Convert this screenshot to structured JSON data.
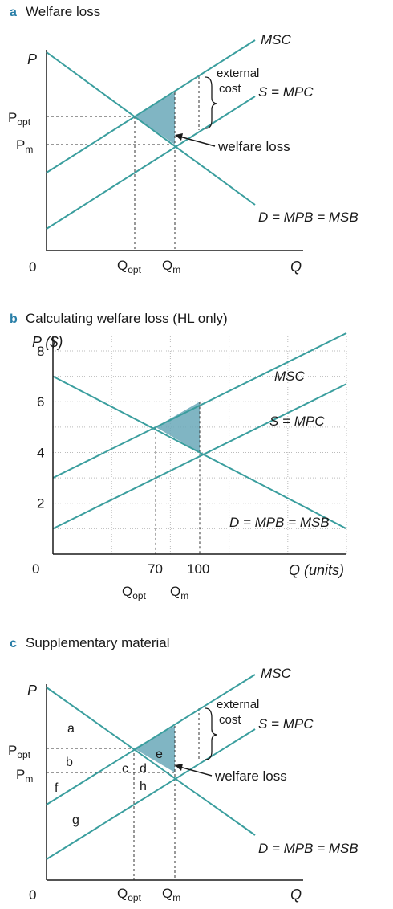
{
  "colors": {
    "curve": "#3a9e9e",
    "shade": "#6aa8b8",
    "axis": "#1a1a1a",
    "dashed": "#333333",
    "grid": "#bbbbbb",
    "panel_letter": "#2a7fa8"
  },
  "panels": {
    "a": {
      "letter": "a",
      "title": "Welfare loss",
      "y_axis": "P",
      "x_axis": "Q",
      "origin": "0",
      "p_opt": "P",
      "p_opt_sub": "opt",
      "p_m": "P",
      "p_m_sub": "m",
      "q_opt": "Q",
      "q_opt_sub": "opt",
      "q_m": "Q",
      "q_m_sub": "m",
      "msc": "MSC",
      "mpc": "S = MPC",
      "demand": "D = MPB = MSB",
      "external_cost_line1": "external",
      "external_cost_line2": "cost",
      "welfare_loss": "welfare loss"
    },
    "b": {
      "letter": "b",
      "title": "Calculating welfare loss (HL only)",
      "y_axis": "P ($)",
      "x_axis": "Q (units)",
      "origin": "0",
      "q_opt": "Q",
      "q_opt_sub": "opt",
      "q_m": "Q",
      "q_m_sub": "m",
      "msc": "MSC",
      "mpc": "S = MPC",
      "demand": "D = MPB = MSB"
    },
    "c": {
      "letter": "c",
      "title": "Supplementary material",
      "y_axis": "P",
      "x_axis": "Q",
      "origin": "0",
      "p_opt": "P",
      "p_opt_sub": "opt",
      "p_m": "P",
      "p_m_sub": "m",
      "q_opt": "Q",
      "q_opt_sub": "opt",
      "q_m": "Q",
      "q_m_sub": "m",
      "msc": "MSC",
      "mpc": "S = MPC",
      "demand": "D = MPB = MSB",
      "external_cost_line1": "external",
      "external_cost_line2": "cost",
      "welfare_loss": "welfare loss",
      "regions": [
        "a",
        "b",
        "c",
        "d",
        "e",
        "f",
        "g",
        "h"
      ]
    }
  },
  "chart_data": [
    {
      "type": "line",
      "panel": "a",
      "title": "Welfare loss",
      "xlabel": "Q",
      "ylabel": "P",
      "series": [
        {
          "name": "MSC"
        },
        {
          "name": "S = MPC"
        },
        {
          "name": "D = MPB = MSB"
        }
      ],
      "x_ticks": [
        "Qopt",
        "Qm"
      ],
      "y_ticks": [
        "Popt",
        "Pm"
      ],
      "annotations": [
        "external cost",
        "welfare loss"
      ]
    },
    {
      "type": "line",
      "panel": "b",
      "title": "Calculating welfare loss (HL only)",
      "xlabel": "Q (units)",
      "ylabel": "P ($)",
      "xlim": [
        0,
        200
      ],
      "ylim": [
        0,
        8
      ],
      "grid": true,
      "y_ticks": [
        0,
        2,
        4,
        6,
        8
      ],
      "x_ticks": [
        70,
        100
      ],
      "x_tick_sublabels": [
        "Qopt",
        "Qm"
      ],
      "series": [
        {
          "name": "MSC",
          "x": [
            0,
            200
          ],
          "y": [
            3,
            8.7
          ]
        },
        {
          "name": "S = MPC",
          "x": [
            0,
            200
          ],
          "y": [
            1,
            6.7
          ]
        },
        {
          "name": "D = MPB = MSB",
          "x": [
            0,
            200
          ],
          "y": [
            7,
            1
          ]
        }
      ],
      "shaded_triangle": [
        [
          70,
          5
        ],
        [
          100,
          6
        ],
        [
          100,
          4
        ]
      ]
    },
    {
      "type": "line",
      "panel": "c",
      "title": "Supplementary material",
      "xlabel": "Q",
      "ylabel": "P",
      "series": [
        {
          "name": "MSC"
        },
        {
          "name": "S = MPC"
        },
        {
          "name": "D = MPB = MSB"
        }
      ],
      "x_ticks": [
        "Qopt",
        "Qm"
      ],
      "y_ticks": [
        "Popt",
        "Pm"
      ],
      "regions": [
        "a",
        "b",
        "c",
        "d",
        "e",
        "f",
        "g",
        "h"
      ],
      "annotations": [
        "external cost",
        "welfare loss"
      ]
    }
  ]
}
